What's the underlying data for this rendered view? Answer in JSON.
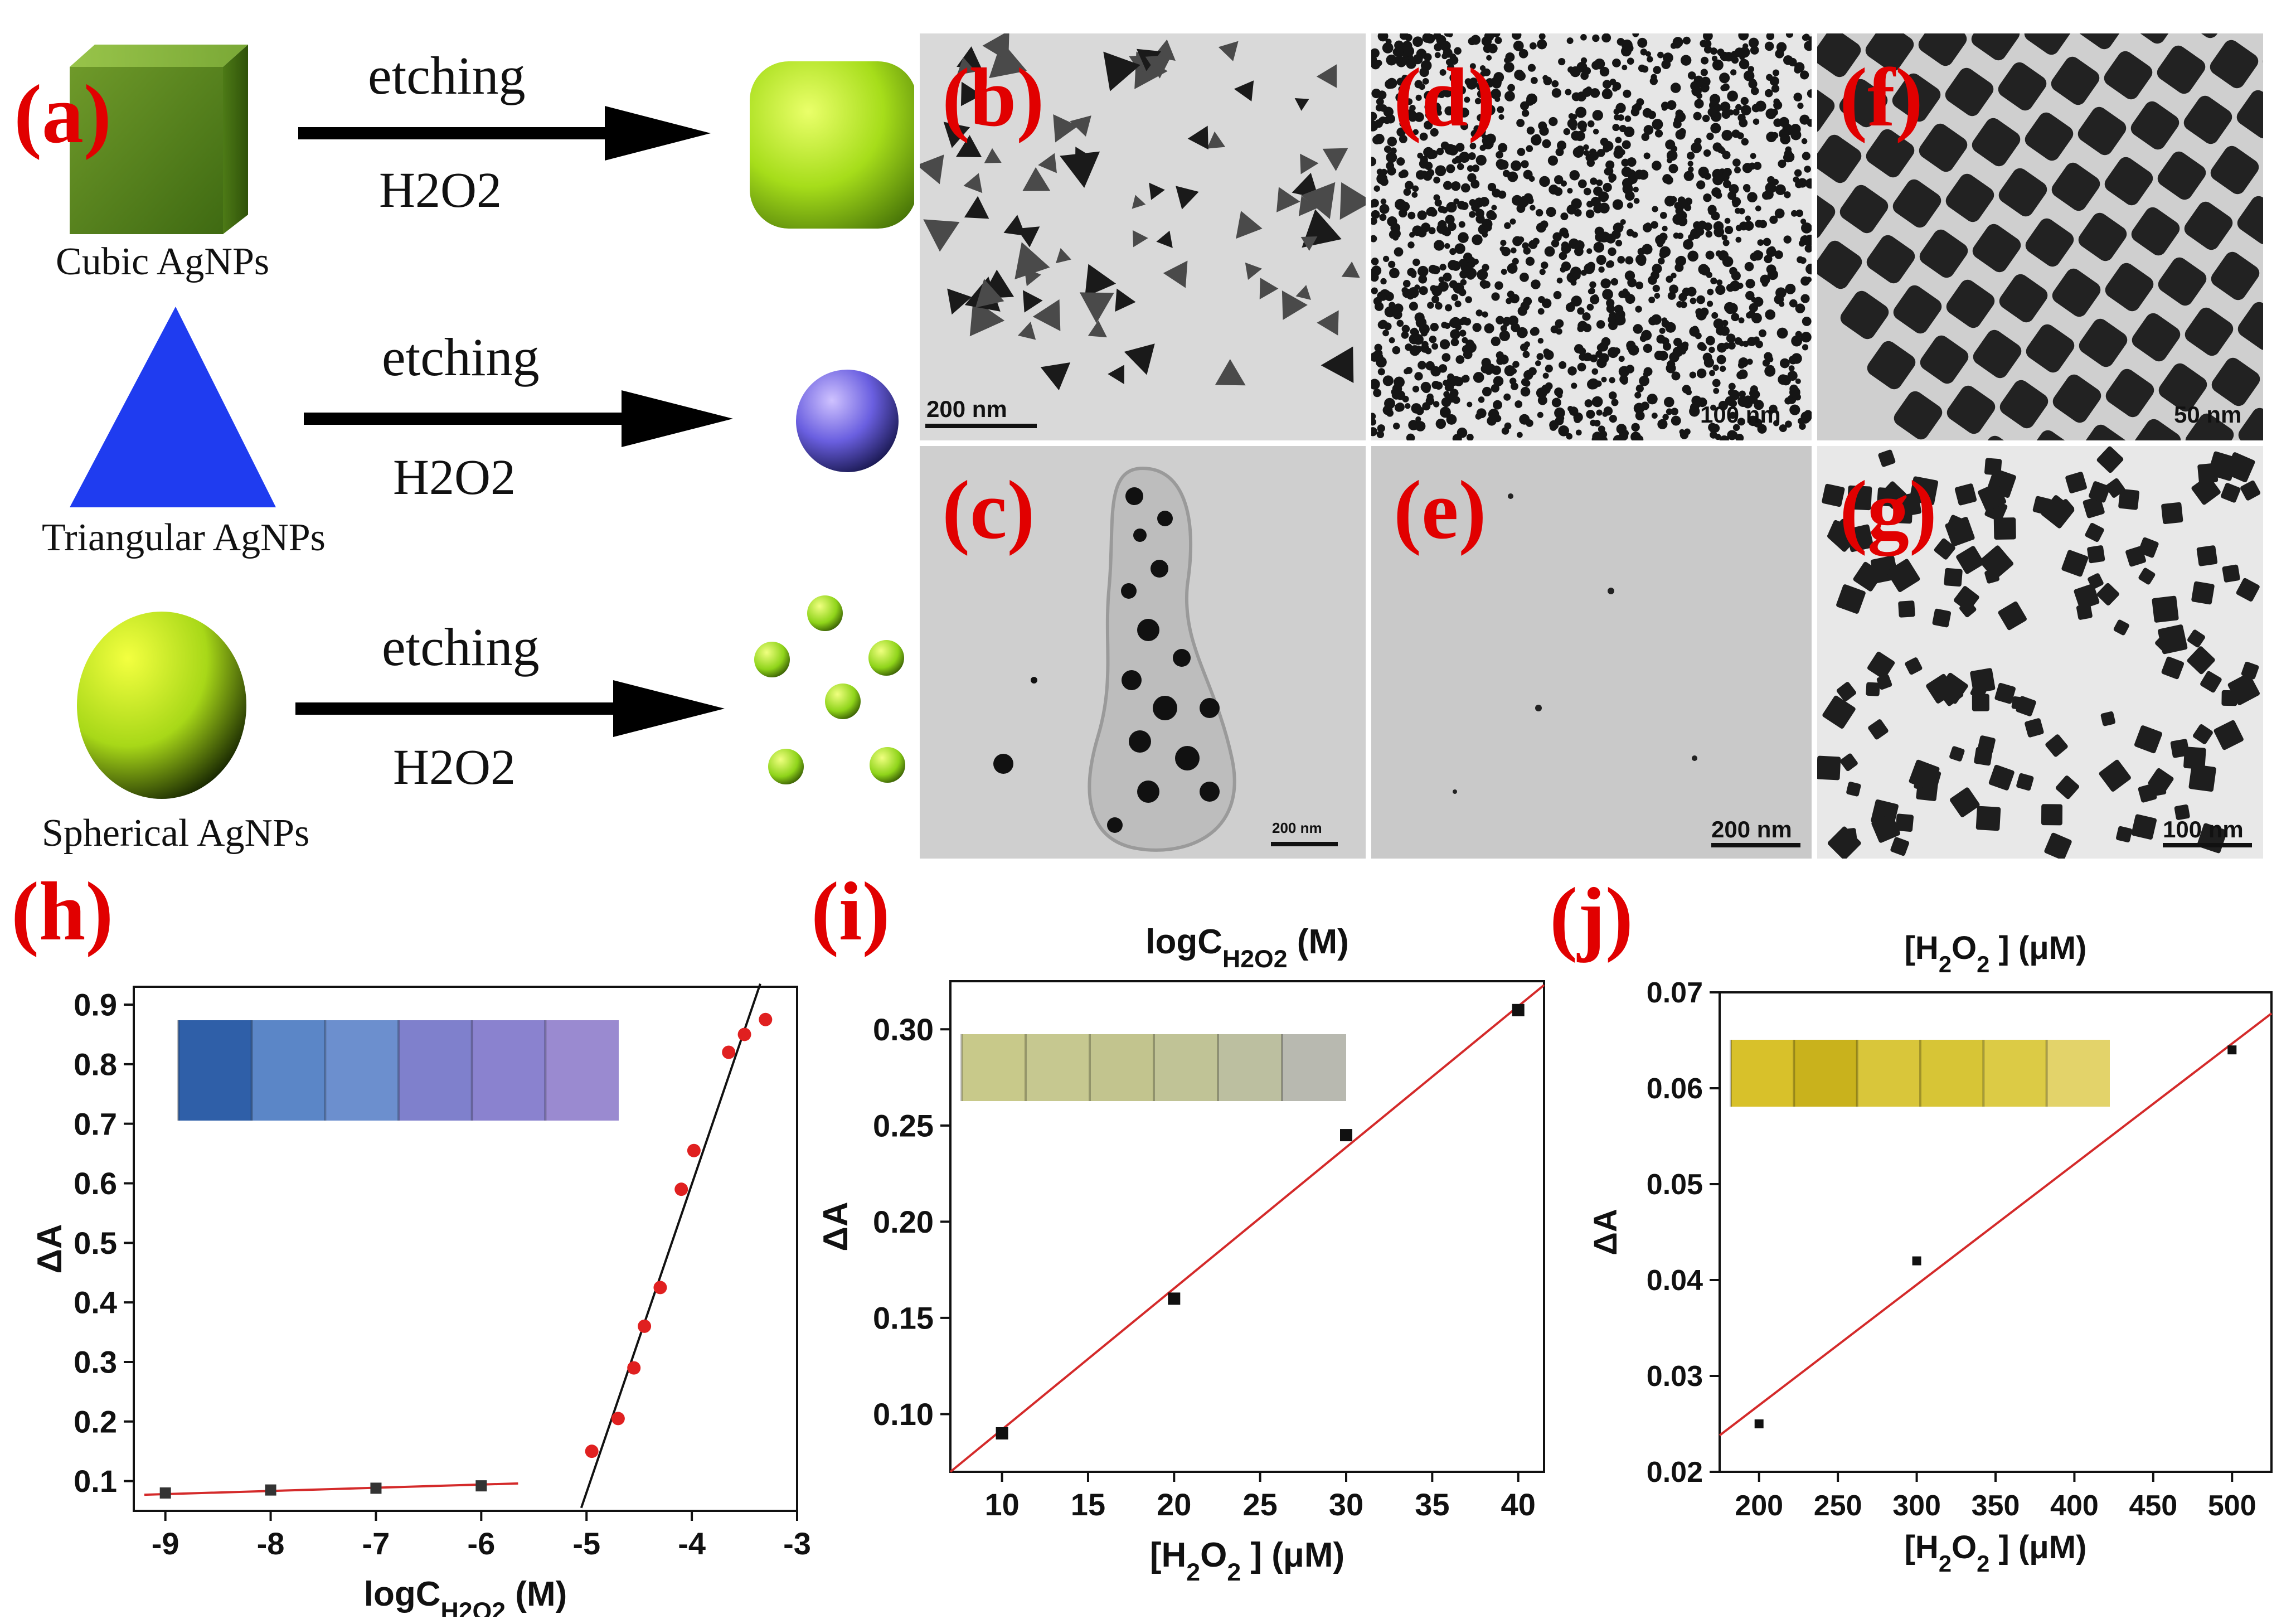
{
  "scheme": {
    "label": "(a)",
    "rows": [
      {
        "name": "Cubic AgNPs",
        "arrow_top": "etching",
        "arrow_bottom": "H2O2"
      },
      {
        "name": "Triangular AgNPs",
        "arrow_top": "etching",
        "arrow_bottom": "H2O2"
      },
      {
        "name": "Spherical AgNPs",
        "arrow_top": "etching",
        "arrow_bottom": "H2O2"
      }
    ]
  },
  "tem": [
    {
      "label": "(b)",
      "scale": "200 nm"
    },
    {
      "label": "(c)",
      "scale": "200 nm"
    },
    {
      "label": "(d)",
      "scale": "100 nm"
    },
    {
      "label": "(e)",
      "scale": "200 nm"
    },
    {
      "label": "(f)",
      "scale": "50 nm"
    },
    {
      "label": "(g)",
      "scale": "100 nm"
    }
  ],
  "colors": {
    "label_red": "#e10000",
    "fit_red": "#d42a2a",
    "fit_black": "#111111"
  },
  "chart_data": [
    {
      "label": "(h)",
      "type": "scatter",
      "title": "",
      "xlabel": "logC",
      "xlabel_sub": "H2O2",
      "xlabel_unit": "(M)",
      "ylabel": "ΔA",
      "xlim": [
        -9.3,
        -3
      ],
      "ylim": [
        0.05,
        0.93
      ],
      "xticks": [
        -9,
        -8,
        -7,
        -6,
        -5,
        -4,
        -3
      ],
      "xtick_labels": [
        "-9",
        "-8",
        "-7",
        "-6",
        "-5",
        "-4",
        "-3"
      ],
      "yticks": [
        0.1,
        0.2,
        0.3,
        0.4,
        0.5,
        0.6,
        0.7,
        0.8,
        0.9
      ],
      "ytick_labels": [
        "0.1",
        "0.2",
        "0.3",
        "0.4",
        "0.5",
        "0.6",
        "0.7",
        "0.8",
        "0.9"
      ],
      "series": [
        {
          "x": [
            -9,
            -8,
            -7,
            -6
          ],
          "y": [
            0.08,
            0.085,
            0.088,
            0.092
          ],
          "marker": "square",
          "color": "#333333"
        },
        {
          "x": [
            -4.95,
            -4.7,
            -4.55,
            -4.45,
            -4.3,
            -4.1,
            -3.98,
            -3.65,
            -3.5,
            -3.3
          ],
          "y": [
            0.15,
            0.205,
            0.29,
            0.36,
            0.425,
            0.59,
            0.655,
            0.82,
            0.85,
            0.875
          ],
          "marker": "circle",
          "color": "#e02020"
        }
      ],
      "fits": [
        {
          "x": [
            -9.2,
            -5.65
          ],
          "y": [
            0.077,
            0.096
          ],
          "color": "#d42a2a"
        },
        {
          "x": [
            -5.05,
            -3.35
          ],
          "y": [
            0.055,
            0.935
          ],
          "color": "#111111"
        }
      ],
      "inset_colors": [
        "#2f5fa8",
        "#5b86c7",
        "#6c8fce",
        "#7f80cc",
        "#8a82cf",
        "#9a8ad0"
      ]
    },
    {
      "label": "(i)",
      "type": "scatter",
      "title": "logC",
      "title_sub": "H2O2",
      "title_unit": "(M)",
      "xlabel": "[H",
      "xlabel_sub": "2",
      "xlabel_mid": "O",
      "xlabel_sub2": "2",
      "xlabel_unit": "] (μM)",
      "ylabel": "ΔA",
      "xlim": [
        7,
        41.5
      ],
      "ylim": [
        0.07,
        0.325
      ],
      "xticks": [
        10,
        15,
        20,
        25,
        30,
        35,
        40
      ],
      "xtick_labels": [
        "10",
        "15",
        "20",
        "25",
        "30",
        "35",
        "40"
      ],
      "yticks": [
        0.1,
        0.15,
        0.2,
        0.25,
        0.3
      ],
      "ytick_labels": [
        "0.10",
        "0.15",
        "0.20",
        "0.25",
        "0.30"
      ],
      "series": [
        {
          "x": [
            10,
            20,
            30,
            40
          ],
          "y": [
            0.09,
            0.16,
            0.245,
            0.31
          ],
          "marker": "square",
          "color": "#111111"
        }
      ],
      "fits": [
        {
          "x": [
            7,
            41.5
          ],
          "y": [
            0.07,
            0.323
          ],
          "color": "#d42a2a"
        }
      ],
      "inset_colors": [
        "#c8c98a",
        "#c6c890",
        "#c2c48e",
        "#c0c396",
        "#bcbfa0",
        "#b8b9b0"
      ]
    },
    {
      "label": "(j)",
      "type": "scatter",
      "title": "[H",
      "title_sub": "2",
      "title_mid": "O",
      "title_sub2": "2",
      "title_unit": "] (μM)",
      "xlabel": "[H",
      "xlabel_sub": "2",
      "xlabel_mid": "O",
      "xlabel_sub2": "2",
      "xlabel_unit": "] (μM)",
      "ylabel": "ΔA",
      "xlim": [
        175,
        525
      ],
      "ylim": [
        0.02,
        0.07
      ],
      "xticks": [
        200,
        250,
        300,
        350,
        400,
        450,
        500
      ],
      "xtick_labels": [
        "200",
        "250",
        "300",
        "350",
        "400",
        "450",
        "500"
      ],
      "yticks": [
        0.02,
        0.03,
        0.04,
        0.05,
        0.06,
        0.07
      ],
      "ytick_labels": [
        "0.02",
        "0.03",
        "0.04",
        "0.05",
        "0.06",
        "0.07"
      ],
      "series": [
        {
          "x": [
            200,
            300,
            500
          ],
          "y": [
            0.025,
            0.042,
            0.064
          ],
          "marker": "square",
          "color": "#111111"
        }
      ],
      "fits": [
        {
          "x": [
            175,
            525
          ],
          "y": [
            0.0238,
            0.0678
          ],
          "color": "#d42a2a"
        }
      ],
      "inset_colors": [
        "#d8c12a",
        "#c9b21c",
        "#d9c63a",
        "#d7c536",
        "#dccb45",
        "#e3d36a"
      ]
    }
  ]
}
